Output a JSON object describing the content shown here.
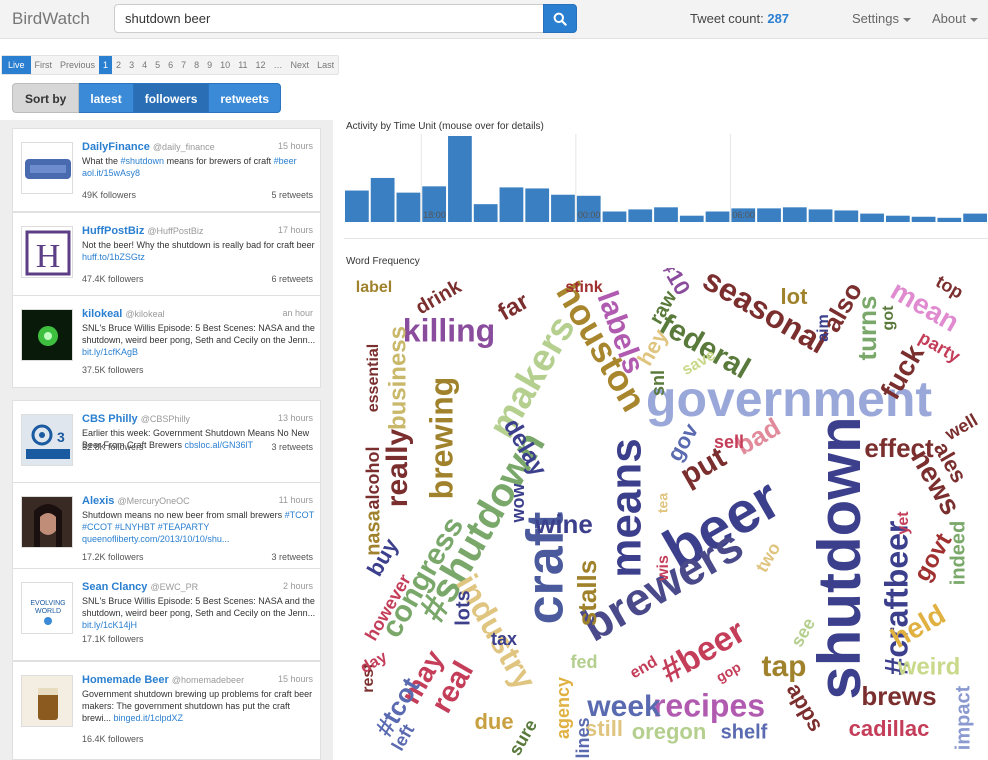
{
  "app": {
    "brand": "BirdWatch"
  },
  "search": {
    "value": "shutdown beer"
  },
  "header": {
    "tweet_count_label": "Tweet count:",
    "tweet_count": "287",
    "settings_label": "Settings",
    "about_label": "About"
  },
  "pagination": [
    "Live",
    "First",
    "Previous",
    "1",
    "2",
    "3",
    "4",
    "5",
    "6",
    "7",
    "8",
    "9",
    "10",
    "11",
    "12",
    "…",
    "Next",
    "Last"
  ],
  "sort": {
    "label": "Sort by",
    "options": [
      "latest",
      "followers",
      "retweets"
    ],
    "selected": "followers"
  },
  "tweets": [
    {
      "name": "DailyFinance",
      "handle": "@daily_finance",
      "time": "15 hours",
      "text": "What the ",
      "tag1": "#shutdown",
      "text2": " means for brewers of craft ",
      "tag2": "#beer",
      "link": "aol.it/15wAsy8",
      "followers": "49K followers",
      "retweets": "5 retweets"
    },
    {
      "name": "HuffPostBiz",
      "handle": "@HuffPostBiz",
      "time": "17 hours",
      "text": "Not the beer! Why the shutdown is really bad for craft beer ",
      "link": "huff.to/1bZSGtz",
      "followers": "47.4K followers",
      "retweets": "6 retweets"
    },
    {
      "name": "kilokeal",
      "handle": "@kilokeal",
      "time": "an hour",
      "text": "SNL's Bruce Willis Episode: 5 Best Scenes: NASA and the shutdown, weird beer pong, Seth and Cecily on the Jenn... ",
      "link": "bit.ly/1cfKAgB",
      "followers": "37.5K followers",
      "retweets": ""
    },
    {
      "name": "CBS Philly",
      "handle": "@CBSPhilly",
      "time": "13 hours",
      "text": "Earlier this week: Government Shutdown Means No New Beer From Craft Brewers ",
      "link": "cbsloc.al/GN36lT",
      "followers": "32.8K followers",
      "retweets": "3 retweets"
    },
    {
      "name": "Alexis",
      "handle": "@MercuryOneOC",
      "time": "11 hours",
      "text": "Shutdown means no new beer from small brewers ",
      "tags": "#TCOT #CCOT #LNYHBT #TEAPARTY",
      "link": "queenofliberty.com/2013/10/10/shu...",
      "followers": "17.2K followers",
      "retweets": "3 retweets"
    },
    {
      "name": "Sean Clancy",
      "handle": "@EWC_PR",
      "time": "2 hours",
      "text": "SNL's Bruce Willis Episode: 5 Best Scenes: NASA and the shutdown, weird beer pong, Seth and Cecily on the Jenn... ",
      "link": "bit.ly/1cK14jH",
      "followers": "17.1K followers",
      "retweets": ""
    },
    {
      "name": "Homemade Beer",
      "handle": "@homemadebeer",
      "time": "15 hours",
      "text": "Government shutdown brewing up problems for craft beer makers: The government shutdown has put the craft brewi... ",
      "link": "binged.it/1clpdXZ",
      "followers": "16.4K followers",
      "retweets": ""
    }
  ],
  "activity": {
    "title": "Activity by Time Unit (mouse over for details)",
    "ticks": [
      "18:00",
      "00:00",
      "06:00"
    ],
    "values": [
      30,
      42,
      28,
      34,
      82,
      17,
      33,
      32,
      26,
      25,
      10,
      12,
      14,
      6,
      10,
      13,
      13,
      14,
      12,
      11,
      8,
      6,
      5,
      4,
      8
    ],
    "color": "#3a7fc1"
  },
  "wordcloud": {
    "title": "Word Frequency",
    "words": [
      {
        "t": "beer",
        "c": "#3b3f8c"
      },
      {
        "t": "shutdown",
        "c": "#3b3f8c"
      },
      {
        "t": "government",
        "c": "#9aa7d9"
      },
      {
        "t": "craft",
        "c": "#4a5a9c"
      },
      {
        "t": "brewers",
        "c": "#4a4a8a"
      },
      {
        "t": "means",
        "c": "#3b3f8c"
      },
      {
        "t": "#shutdown",
        "c": "#7aa86a"
      },
      {
        "t": "makers",
        "c": "#b4cf8e"
      },
      {
        "t": "houston",
        "c": "#a7862e"
      },
      {
        "t": "seasonal",
        "c": "#7b2e2e"
      },
      {
        "t": "federal",
        "c": "#5a7a3c"
      },
      {
        "t": "killing",
        "c": "#8a4c9c"
      },
      {
        "t": "brewing",
        "c": "#a0822c"
      },
      {
        "t": "industry",
        "c": "#e0c580"
      },
      {
        "t": "#craftbeer",
        "c": "#3b3f8c"
      },
      {
        "t": "#beer",
        "c": "#c43e5a"
      },
      {
        "t": "labels",
        "c": "#b05ab0"
      },
      {
        "t": "recipes",
        "c": "#b05ab0"
      },
      {
        "t": "congress",
        "c": "#7aa86a"
      },
      {
        "t": "wine",
        "c": "#3b3f8c"
      },
      {
        "t": "news",
        "c": "#7b2e2e"
      },
      {
        "t": "week",
        "c": "#5a6ab0"
      },
      {
        "t": "effect",
        "c": "#7b2e2e"
      },
      {
        "t": "brews",
        "c": "#7b2e2e"
      },
      {
        "t": "really",
        "c": "#7b2e2e"
      },
      {
        "t": "business",
        "c": "#c9b86a"
      },
      {
        "t": "put",
        "c": "#7b2e2e"
      },
      {
        "t": "bad",
        "c": "#e08a9a"
      },
      {
        "t": "real",
        "c": "#c43e5a"
      },
      {
        "t": "held",
        "c": "#e0b040"
      },
      {
        "t": "weird",
        "c": "#c9d98a"
      },
      {
        "t": "tap",
        "c": "#a0822c"
      },
      {
        "t": "turns",
        "c": "#7aa86a"
      },
      {
        "t": "fuck",
        "c": "#7b2e2e"
      },
      {
        "t": "mean",
        "c": "#e08ad0"
      },
      {
        "t": "also",
        "c": "#7b2e2e"
      },
      {
        "t": "stalls",
        "c": "#a0822c"
      },
      {
        "t": "delay",
        "c": "#3b3f8c"
      },
      {
        "t": "oregon",
        "c": "#b4cf8e"
      },
      {
        "t": "cadillac",
        "c": "#c43e5a"
      },
      {
        "t": "shelf",
        "c": "#5a6ab0"
      },
      {
        "t": "still",
        "c": "#e0c580"
      },
      {
        "t": "due",
        "c": "#c9a040"
      },
      {
        "t": "may",
        "c": "#c43e5a"
      },
      {
        "t": "#tcot",
        "c": "#5a6ab0"
      },
      {
        "t": "gov",
        "c": "#5a6ab0"
      },
      {
        "t": "govt",
        "c": "#a03030"
      },
      {
        "t": "ales",
        "c": "#7b2e2e"
      },
      {
        "t": "indeed",
        "c": "#7aa86a"
      },
      {
        "t": "impact",
        "c": "#8a9ad0"
      },
      {
        "t": "apps",
        "c": "#7b2e2e"
      },
      {
        "t": "sell",
        "c": "#c43e5a"
      },
      {
        "t": "buy",
        "c": "#3b3f8c"
      },
      {
        "t": "lots",
        "c": "#3b3f8c"
      },
      {
        "t": "nasa",
        "c": "#a0822c"
      },
      {
        "t": "alcohol",
        "c": "#7b2e2e"
      },
      {
        "t": "essential",
        "c": "#7b2e2e"
      },
      {
        "t": "label",
        "c": "#a0822c"
      },
      {
        "t": "drink",
        "c": "#7b2e2e"
      },
      {
        "t": "stink",
        "c": "#a03030"
      },
      {
        "t": "far",
        "c": "#7b2e2e"
      },
      {
        "t": "raw",
        "c": "#5a7a3c"
      },
      {
        "t": "hey",
        "c": "#e0c580"
      },
      {
        "t": "#10",
        "c": "#8a4c9c"
      },
      {
        "t": "lot",
        "c": "#a0822c"
      },
      {
        "t": "snl",
        "c": "#5a7a3c"
      },
      {
        "t": "save",
        "c": "#c9d98a"
      },
      {
        "t": "top",
        "c": "#7b2e2e"
      },
      {
        "t": "got",
        "c": "#5a7a3c"
      },
      {
        "t": "party",
        "c": "#c43e5a"
      },
      {
        "t": "well",
        "c": "#7b2e2e"
      },
      {
        "t": "tax",
        "c": "#3b3f8c"
      },
      {
        "t": "fed",
        "c": "#b4cf8e"
      },
      {
        "t": "end",
        "c": "#c43e5a"
      },
      {
        "t": "see",
        "c": "#b4cf8e"
      },
      {
        "t": "sure",
        "c": "#5a7a3c"
      },
      {
        "t": "lines",
        "c": "#5a6ab0"
      },
      {
        "t": "agency",
        "c": "#e0b040"
      },
      {
        "t": "left",
        "c": "#5a6ab0"
      },
      {
        "t": "rest",
        "c": "#7b2e2e"
      },
      {
        "t": "day",
        "c": "#c43e5a"
      },
      {
        "t": "however",
        "c": "#c43e5a"
      },
      {
        "t": "wow",
        "c": "#3b3f8c"
      },
      {
        "t": "two",
        "c": "#e0c580"
      },
      {
        "t": "aim",
        "c": "#3b3f8c"
      },
      {
        "t": "yet",
        "c": "#c43e5a"
      },
      {
        "t": "wis",
        "c": "#c43e5a"
      },
      {
        "t": "tea",
        "c": "#e0c580"
      },
      {
        "t": "gop",
        "c": "#c43e5a"
      }
    ]
  }
}
